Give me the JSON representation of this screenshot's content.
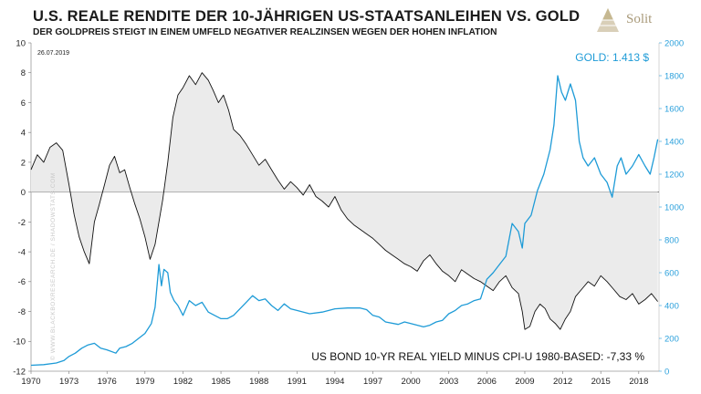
{
  "header": {
    "title": "U.S. REALE RENDITE DER 10-JÄHRIGEN US-STAATSANLEIHEN VS. GOLD",
    "subtitle": "DER GOLDPREIS STEIGT IN EINEM UMFELD NEGATIVER REALZINSEN WEGEN DER HOHEN INFLATION",
    "logo_text": "Solit"
  },
  "chart_data": {
    "type": "line",
    "date_label": "26.07.2019",
    "watermark": "© WWW.BLACKBOXRESEARCH.DE / SHADOWSTATS.COM",
    "gold_label": "GOLD: 1.413 $",
    "yield_label": "US BOND 10-YR REAL YIELD MINUS CPI-U 1980-BASED: -7,33 %",
    "colors": {
      "yield": "#111111",
      "gold": "#1e9bd7",
      "fill": "#ebebeb"
    },
    "xlim": [
      1970,
      2019.6
    ],
    "y_left": {
      "min": -12,
      "max": 10,
      "ticks": [
        -12,
        -10,
        -8,
        -6,
        -4,
        -2,
        0,
        2,
        4,
        6,
        8,
        10
      ]
    },
    "y_right": {
      "min": 0,
      "max": 2000,
      "ticks": [
        0,
        200,
        400,
        600,
        800,
        1000,
        1200,
        1400,
        1600,
        1800,
        2000
      ]
    },
    "x_ticks": [
      1970,
      1973,
      1976,
      1979,
      1982,
      1985,
      1988,
      1991,
      1994,
      1997,
      2000,
      2003,
      2006,
      2009,
      2012,
      2015,
      2018
    ],
    "series": [
      {
        "name": "US Bond 10-yr real yield minus CPI-U 1980-based (%)",
        "axis": "left",
        "x": [
          1970.0,
          1970.5,
          1971.0,
          1971.5,
          1972.0,
          1972.5,
          1973.0,
          1973.4,
          1973.8,
          1974.2,
          1974.6,
          1975.0,
          1975.4,
          1975.8,
          1976.2,
          1976.6,
          1977.0,
          1977.4,
          1977.8,
          1978.2,
          1978.6,
          1979.0,
          1979.4,
          1979.8,
          1980.1,
          1980.4,
          1980.8,
          1981.2,
          1981.6,
          1982.0,
          1982.5,
          1983.0,
          1983.5,
          1984.0,
          1984.4,
          1984.8,
          1985.2,
          1985.6,
          1986.0,
          1986.5,
          1987.0,
          1987.5,
          1988.0,
          1988.5,
          1989.0,
          1989.5,
          1990.0,
          1990.5,
          1991.0,
          1991.5,
          1992.0,
          1992.5,
          1993.0,
          1993.5,
          1994.0,
          1994.5,
          1995.0,
          1995.5,
          1996.0,
          1996.5,
          1997.0,
          1997.5,
          1998.0,
          1998.5,
          1999.0,
          1999.5,
          2000.0,
          2000.5,
          2001.0,
          2001.5,
          2002.0,
          2002.5,
          2003.0,
          2003.5,
          2004.0,
          2004.5,
          2005.0,
          2005.5,
          2006.0,
          2006.5,
          2007.0,
          2007.5,
          2008.0,
          2008.5,
          2008.8,
          2009.0,
          2009.4,
          2009.8,
          2010.2,
          2010.6,
          2011.0,
          2011.4,
          2011.8,
          2012.2,
          2012.6,
          2013.0,
          2013.5,
          2014.0,
          2014.5,
          2015.0,
          2015.5,
          2016.0,
          2016.5,
          2017.0,
          2017.5,
          2018.0,
          2018.5,
          2019.0,
          2019.5
        ],
        "values": [
          1.5,
          2.5,
          2.0,
          3.0,
          3.3,
          2.8,
          0.5,
          -1.5,
          -3.0,
          -4.0,
          -4.8,
          -2.0,
          -0.8,
          0.5,
          1.8,
          2.4,
          1.3,
          1.5,
          0.3,
          -0.8,
          -1.8,
          -3.0,
          -4.5,
          -3.5,
          -2.0,
          -0.5,
          2.0,
          5.0,
          6.5,
          7.0,
          7.8,
          7.2,
          8.0,
          7.5,
          6.8,
          6.0,
          6.5,
          5.5,
          4.2,
          3.8,
          3.2,
          2.5,
          1.8,
          2.2,
          1.5,
          0.8,
          0.2,
          0.7,
          0.3,
          -0.2,
          0.5,
          -0.3,
          -0.6,
          -1.0,
          -0.3,
          -1.2,
          -1.8,
          -2.2,
          -2.5,
          -2.8,
          -3.1,
          -3.5,
          -3.9,
          -4.2,
          -4.5,
          -4.8,
          -5.0,
          -5.3,
          -4.6,
          -4.2,
          -4.8,
          -5.3,
          -5.6,
          -6.0,
          -5.2,
          -5.5,
          -5.8,
          -6.0,
          -6.3,
          -6.6,
          -6.0,
          -5.6,
          -6.4,
          -6.8,
          -8.0,
          -9.2,
          -9.0,
          -8.0,
          -7.5,
          -7.8,
          -8.5,
          -8.8,
          -9.2,
          -8.5,
          -8.0,
          -7.0,
          -6.5,
          -6.0,
          -6.3,
          -5.6,
          -6.0,
          -6.5,
          -7.0,
          -7.2,
          -6.8,
          -7.5,
          -7.2,
          -6.8,
          -7.33
        ]
      },
      {
        "name": "Gold (USD)",
        "axis": "right",
        "x": [
          1970.0,
          1971.0,
          1972.0,
          1972.6,
          1973.0,
          1973.5,
          1974.0,
          1974.5,
          1975.0,
          1975.5,
          1976.0,
          1976.7,
          1977.0,
          1977.5,
          1978.0,
          1978.5,
          1979.0,
          1979.5,
          1979.8,
          1980.0,
          1980.1,
          1980.3,
          1980.5,
          1980.8,
          1981.0,
          1981.3,
          1981.6,
          1982.0,
          1982.5,
          1983.0,
          1983.5,
          1984.0,
          1984.5,
          1985.0,
          1985.5,
          1986.0,
          1986.5,
          1987.0,
          1987.5,
          1988.0,
          1988.5,
          1989.0,
          1989.5,
          1990.0,
          1990.5,
          1991.0,
          1992.0,
          1993.0,
          1994.0,
          1995.0,
          1996.0,
          1996.5,
          1997.0,
          1997.5,
          1998.0,
          1999.0,
          1999.5,
          2000.0,
          2001.0,
          2001.5,
          2002.0,
          2002.5,
          2003.0,
          2003.5,
          2004.0,
          2004.5,
          2005.0,
          2005.5,
          2006.0,
          2006.5,
          2007.0,
          2007.5,
          2008.0,
          2008.5,
          2008.8,
          2009.0,
          2009.5,
          2010.0,
          2010.5,
          2011.0,
          2011.3,
          2011.6,
          2011.9,
          2012.2,
          2012.6,
          2013.0,
          2013.3,
          2013.6,
          2014.0,
          2014.5,
          2015.0,
          2015.5,
          2015.9,
          2016.3,
          2016.6,
          2017.0,
          2017.5,
          2018.0,
          2018.5,
          2018.9,
          2019.2,
          2019.5
        ],
        "values": [
          36,
          40,
          50,
          65,
          90,
          110,
          140,
          160,
          170,
          140,
          130,
          110,
          140,
          150,
          170,
          200,
          230,
          290,
          390,
          560,
          650,
          520,
          620,
          600,
          480,
          430,
          400,
          340,
          430,
          400,
          420,
          360,
          340,
          320,
          320,
          340,
          380,
          420,
          460,
          430,
          440,
          400,
          370,
          410,
          380,
          370,
          350,
          360,
          380,
          385,
          385,
          375,
          340,
          330,
          300,
          285,
          300,
          290,
          270,
          280,
          300,
          310,
          350,
          370,
          400,
          410,
          430,
          440,
          560,
          600,
          650,
          700,
          900,
          850,
          750,
          900,
          950,
          1100,
          1200,
          1350,
          1500,
          1800,
          1700,
          1650,
          1750,
          1650,
          1400,
          1300,
          1250,
          1300,
          1200,
          1150,
          1060,
          1250,
          1300,
          1200,
          1250,
          1320,
          1250,
          1200,
          1300,
          1413
        ]
      }
    ]
  }
}
